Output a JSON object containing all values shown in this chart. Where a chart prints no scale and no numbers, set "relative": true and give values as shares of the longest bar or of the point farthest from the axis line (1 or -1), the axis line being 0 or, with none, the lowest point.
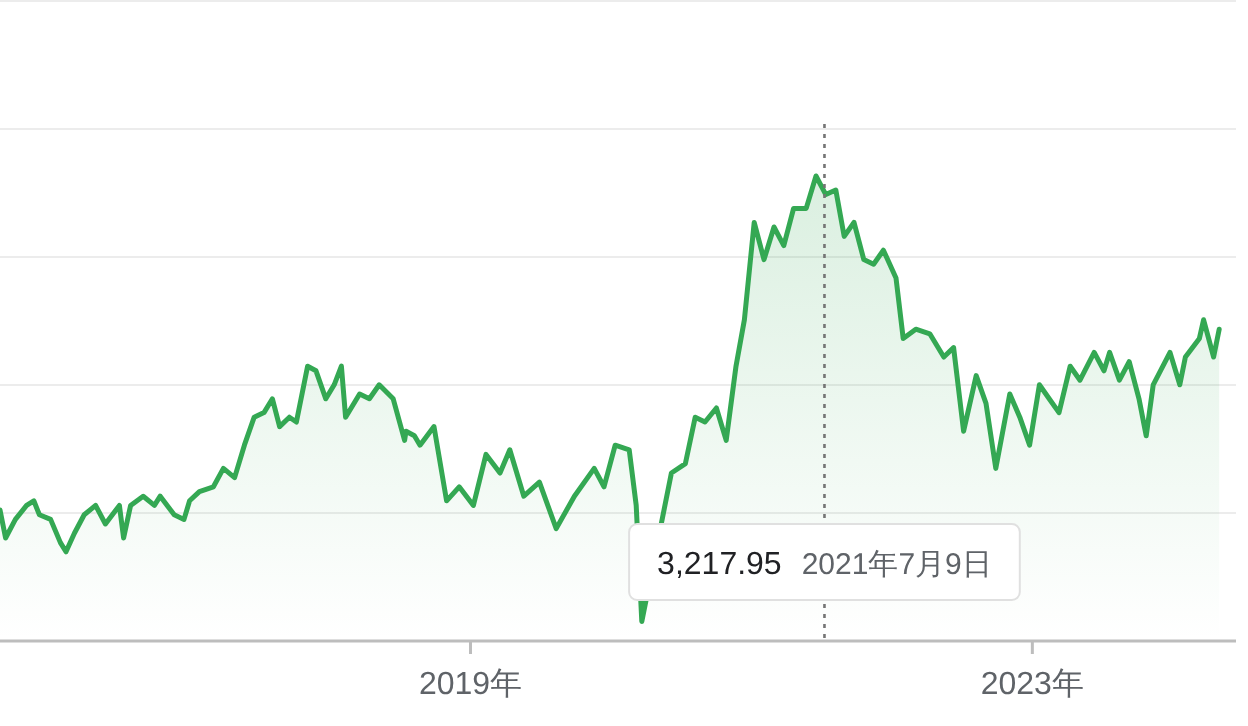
{
  "chart_data": {
    "type": "area",
    "relative": true,
    "grid": "y",
    "xlim": [
      2015.65,
      2024.45
    ],
    "xticks": [
      {
        "value": 2019,
        "label": "2019年"
      },
      {
        "value": 2023,
        "label": "2023年"
      }
    ],
    "ref_lines": [
      {
        "axis": "x",
        "value": 2021.52,
        "line_style": "dotted",
        "color": "#757575"
      }
    ],
    "annotations": [
      {
        "text": "3,217.95",
        "x": 2021.52
      },
      "2021年7月9日"
    ],
    "series": [
      {
        "color": "#34a853",
        "x": [
          2015.65,
          2015.69,
          2015.76,
          2015.84,
          2015.89,
          2015.93,
          2016.01,
          2016.08,
          2016.12,
          2016.18,
          2016.25,
          2016.33,
          2016.4,
          2016.5,
          2016.53,
          2016.58,
          2016.67,
          2016.75,
          2016.79,
          2016.89,
          2016.96,
          2017.0,
          2017.07,
          2017.17,
          2017.24,
          2017.32,
          2017.39,
          2017.46,
          2017.53,
          2017.59,
          2017.64,
          2017.71,
          2017.76,
          2017.84,
          2017.9,
          2017.97,
          2018.03,
          2018.08,
          2018.11,
          2018.21,
          2018.28,
          2018.35,
          2018.45,
          2018.53,
          2018.54,
          2018.6,
          2018.64,
          2018.74,
          2018.83,
          2018.92,
          2019.02,
          2019.11,
          2019.21,
          2019.28,
          2019.38,
          2019.49,
          2019.61,
          2019.74,
          2019.88,
          2019.95,
          2020.03,
          2020.13,
          2020.18,
          2020.22,
          2020.43,
          2020.53,
          2020.6,
          2020.67,
          2020.75,
          2020.82,
          2020.89,
          2020.95,
          2021.02,
          2021.09,
          2021.16,
          2021.23,
          2021.3,
          2021.39,
          2021.46,
          2021.53,
          2021.6,
          2021.66,
          2021.73,
          2021.8,
          2021.87,
          2021.94,
          2022.03,
          2022.08,
          2022.17,
          2022.27,
          2022.37,
          2022.44,
          2022.51,
          2022.6,
          2022.67,
          2022.74,
          2022.84,
          2022.91,
          2022.98,
          2023.05,
          2023.12,
          2023.19,
          2023.27,
          2023.34,
          2023.44,
          2023.51,
          2023.55,
          2023.62,
          2023.69,
          2023.76,
          2023.81,
          2023.86,
          2023.98,
          2024.05,
          2024.09,
          2024.19,
          2024.22,
          2024.29,
          2024.33
        ],
        "values": [
          0.28,
          0.22,
          0.26,
          0.29,
          0.3,
          0.27,
          0.26,
          0.21,
          0.19,
          0.23,
          0.27,
          0.29,
          0.25,
          0.29,
          0.22,
          0.29,
          0.31,
          0.29,
          0.31,
          0.27,
          0.26,
          0.3,
          0.32,
          0.33,
          0.37,
          0.35,
          0.42,
          0.48,
          0.49,
          0.52,
          0.46,
          0.48,
          0.47,
          0.59,
          0.58,
          0.52,
          0.55,
          0.59,
          0.48,
          0.53,
          0.52,
          0.55,
          0.52,
          0.43,
          0.45,
          0.44,
          0.42,
          0.46,
          0.3,
          0.33,
          0.29,
          0.4,
          0.36,
          0.41,
          0.31,
          0.34,
          0.24,
          0.31,
          0.37,
          0.33,
          0.42,
          0.41,
          0.29,
          0.04,
          0.36,
          0.38,
          0.48,
          0.47,
          0.5,
          0.43,
          0.59,
          0.69,
          0.9,
          0.82,
          0.89,
          0.85,
          0.93,
          0.93,
          1.0,
          0.96,
          0.97,
          0.87,
          0.9,
          0.82,
          0.81,
          0.84,
          0.78,
          0.65,
          0.67,
          0.66,
          0.61,
          0.63,
          0.45,
          0.57,
          0.51,
          0.37,
          0.53,
          0.48,
          0.42,
          0.55,
          0.52,
          0.49,
          0.59,
          0.56,
          0.62,
          0.58,
          0.62,
          0.56,
          0.6,
          0.52,
          0.44,
          0.55,
          0.62,
          0.55,
          0.61,
          0.65,
          0.69,
          0.61,
          0.67
        ]
      }
    ]
  }
}
